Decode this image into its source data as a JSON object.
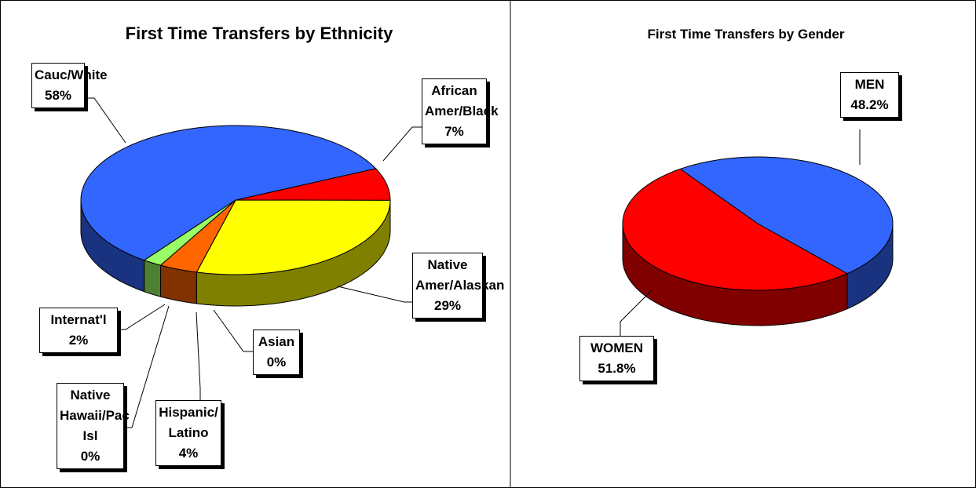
{
  "chart_data": [
    {
      "type": "pie3d",
      "title": "First Time Transfers by Ethnicity",
      "categories": [
        "African Amer/Black",
        "Native Amer/Alaskan",
        "Asian",
        "Hispanic/Latino",
        "Native Hawaii/Pac Isl",
        "Internat'l",
        "Cauc/White"
      ],
      "values": [
        7,
        29,
        0,
        4,
        0,
        2,
        58
      ],
      "value_labels": [
        "7%",
        "29%",
        "0%",
        "4%",
        "0%",
        "2%",
        "58%"
      ],
      "colors": [
        "#ff0000",
        "#ffff00",
        "#33ccff",
        "#ff6600",
        "#9999ff",
        "#99ff66",
        "#3366ff"
      ]
    },
    {
      "type": "pie3d",
      "title": "First Time Transfers by Gender",
      "categories": [
        "MEN",
        "WOMEN"
      ],
      "values": [
        48.2,
        51.8
      ],
      "value_labels": [
        "48.2%",
        "51.8%"
      ],
      "colors": [
        "#3366ff",
        "#ff0000"
      ]
    }
  ]
}
